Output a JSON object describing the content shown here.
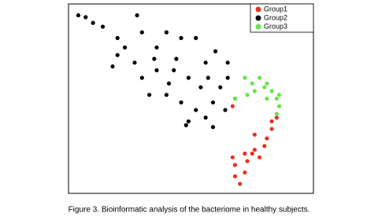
{
  "chart_data": {
    "type": "scatter",
    "caption": "Figure 3. Bioinformatic analysis of the bacteriome in healthy subjects.",
    "xlim": [
      0,
      100
    ],
    "ylim": [
      0,
      100
    ],
    "legend": "top-right",
    "series": [
      {
        "name": "Group1",
        "color": "#e8321e",
        "x": [
          85,
          83,
          81,
          80,
          76,
          75,
          72,
          67,
          68,
          68,
          70,
          72,
          73,
          78,
          76,
          83,
          67
        ],
        "y": [
          40,
          34,
          29,
          25,
          23,
          21,
          21,
          19,
          15,
          9,
          5,
          11,
          17,
          19,
          31,
          38,
          46
        ]
      },
      {
        "name": "Group2",
        "color": "#000000",
        "x": [
          4,
          7,
          14,
          20,
          28,
          30,
          36,
          40,
          46,
          52,
          56,
          49,
          43,
          36,
          30,
          27,
          20,
          18,
          40,
          46,
          49,
          52,
          59,
          62,
          65,
          59,
          56,
          48,
          68,
          64,
          60,
          65,
          10,
          23,
          33,
          41,
          54,
          57,
          44,
          35
        ],
        "y": [
          94,
          93,
          88,
          82,
          94,
          85,
          77,
          85,
          82,
          82,
          69,
          61,
          65,
          65,
          61,
          69,
          73,
          67,
          52,
          48,
          38,
          44,
          48,
          56,
          61,
          35,
          40,
          36,
          50,
          44,
          75,
          69,
          90,
          77,
          52,
          58,
          56,
          61,
          71,
          71
        ]
      },
      {
        "name": "Group3",
        "color": "#66e64a",
        "x": [
          72,
          75,
          78,
          81,
          83,
          85,
          86,
          85,
          76,
          73,
          68,
          80,
          86,
          81
        ],
        "y": [
          61,
          58,
          61,
          58,
          54,
          50,
          46,
          42,
          54,
          52,
          50,
          56,
          52,
          50
        ]
      }
    ]
  }
}
